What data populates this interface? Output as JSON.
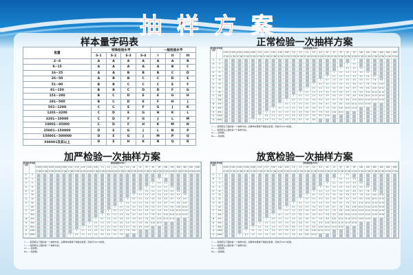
{
  "title": "抽样方案",
  "code_table": {
    "title": "样本量字码表",
    "lot_header": "批量",
    "special_header": "特殊检验水平",
    "general_header": "一般检验水平",
    "levels": [
      "S-1",
      "S-2",
      "S-3",
      "S-4",
      "I",
      "II",
      "III"
    ],
    "rows": [
      {
        "lot": "2~8",
        "codes": [
          "A",
          "A",
          "A",
          "A",
          "A",
          "A",
          "B"
        ]
      },
      {
        "lot": "9~15",
        "codes": [
          "A",
          "A",
          "A",
          "A",
          "A",
          "B",
          "C"
        ]
      },
      {
        "lot": "16~25",
        "codes": [
          "A",
          "A",
          "B",
          "B",
          "B",
          "C",
          "D"
        ]
      },
      {
        "lot": "26~50",
        "codes": [
          "A",
          "B",
          "B",
          "C",
          "C",
          "D",
          "E"
        ]
      },
      {
        "lot": "51~90",
        "codes": [
          "B",
          "B",
          "C",
          "C",
          "C",
          "E",
          "F"
        ]
      },
      {
        "lot": "91~150",
        "codes": [
          "B",
          "B",
          "C",
          "D",
          "D",
          "F",
          "G"
        ]
      },
      {
        "lot": "151~280",
        "codes": [
          "B",
          "C",
          "D",
          "E",
          "E",
          "G",
          "H"
        ]
      },
      {
        "lot": "281~500",
        "codes": [
          "B",
          "C",
          "D",
          "E",
          "F",
          "H",
          "J"
        ]
      },
      {
        "lot": "501~1200",
        "codes": [
          "C",
          "C",
          "E",
          "F",
          "G",
          "J",
          "K"
        ]
      },
      {
        "lot": "1201~3200",
        "codes": [
          "C",
          "D",
          "E",
          "G",
          "H",
          "K",
          "L"
        ]
      },
      {
        "lot": "3201~10000",
        "codes": [
          "C",
          "D",
          "F",
          "G",
          "J",
          "L",
          "M"
        ]
      },
      {
        "lot": "10001~35000",
        "codes": [
          "C",
          "D",
          "F",
          "H",
          "K",
          "M",
          "N"
        ]
      },
      {
        "lot": "35001~150000",
        "codes": [
          "D",
          "E",
          "G",
          "J",
          "L",
          "N",
          "P"
        ]
      },
      {
        "lot": "150001~500000",
        "codes": [
          "D",
          "E",
          "G",
          "J",
          "M",
          "P",
          "Q"
        ]
      },
      {
        "lot": "500001及其以上",
        "codes": [
          "D",
          "E",
          "H",
          "K",
          "N",
          "Q",
          "R"
        ]
      }
    ]
  },
  "plans": {
    "normal": {
      "title": "正常检验一次抽样方案"
    },
    "tightened": {
      "title": "加严检验一次抽样方案"
    },
    "reduced": {
      "title": "放宽检验一次抽样方案"
    },
    "code_header": "样本量字码",
    "size_header": "样本量",
    "aql_header": "接收质量限(AQL)",
    "ac": "Ac",
    "re": "Re",
    "aql": [
      "0.010",
      "0.015",
      "0.025",
      "0.040",
      "0.065",
      "0.10",
      "0.15",
      "0.25",
      "0.40",
      "0.65",
      "1.0",
      "1.5",
      "2.5",
      "4.0",
      "6.5",
      "10",
      "15",
      "25",
      "40",
      "65",
      "100",
      "150",
      "250",
      "400",
      "650",
      "1000"
    ],
    "codes": [
      "A",
      "B",
      "C",
      "D",
      "E",
      "F",
      "G",
      "H",
      "J",
      "K",
      "L",
      "M",
      "N",
      "P",
      "Q",
      "R"
    ],
    "sizes": [
      "2",
      "3",
      "5",
      "8",
      "13",
      "20",
      "32",
      "50",
      "80",
      "125",
      "200",
      "315",
      "500",
      "800",
      "1250",
      "2000"
    ],
    "legend": [
      "⇩——使用箭头下面的第一个抽样方案，如果样本量等于或超过批量，则执行100%检验。",
      "⇧——使用箭头上面的第一个抽样方案。",
      "Ac——接收数。",
      "Re——拒收数。"
    ]
  },
  "colors": {
    "title": "#d81e1e",
    "header_blue": "#0b5fae",
    "stripe": "#b9bfc6"
  }
}
